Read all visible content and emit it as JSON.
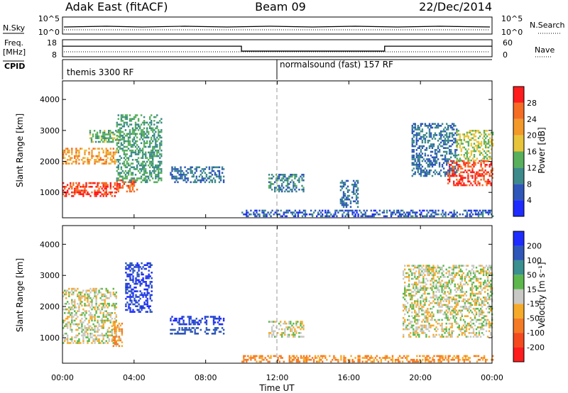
{
  "header": {
    "left_title": "Adak East (fitACF)",
    "center_title": "Beam 09",
    "right_title": "22/Dec/2014"
  },
  "top_panels": {
    "nsky_label": "N.Sky",
    "nsky_ticks": [
      "10^5",
      "10^0"
    ],
    "nsearch_label": "N.Search",
    "nsearch_ticks": [
      "10^5",
      "10^0"
    ],
    "freq_label_line1": "Freq.",
    "freq_label_line2": "[MHz]",
    "freq_ticks": [
      "18",
      "8"
    ],
    "nave_label": "Nave",
    "nave_ticks": [
      "60",
      "0"
    ],
    "cpid_label": "CPID",
    "cpid_modes": [
      "themis 3300 RF",
      "normalsound (fast) 157 RF"
    ],
    "freq_steps": [
      {
        "start_h": 0,
        "end_h": 10.0,
        "mhz": 14.2
      },
      {
        "start_h": 10.0,
        "end_h": 18.0,
        "mhz": 11.3
      },
      {
        "start_h": 18.0,
        "end_h": 24,
        "mhz": 14.2
      }
    ]
  },
  "x_axis": {
    "label": "Time UT",
    "ticks": [
      "00:00",
      "04:00",
      "08:00",
      "12:00",
      "16:00",
      "20:00",
      "00:00"
    ],
    "range_hours": [
      0,
      24
    ],
    "mode_change_hour": 12
  },
  "chart_data": [
    {
      "type": "heatmap",
      "name": "power",
      "ylabel": "Slant Range [km]",
      "yticks": [
        1000,
        2000,
        3000,
        4000
      ],
      "ylim": [
        180,
        4600
      ],
      "colorbar_label": "Power [dB]",
      "colorbar_ticks": [
        4,
        8,
        12,
        16,
        20,
        24,
        28
      ],
      "colorbar_colors": [
        "#1e2cff",
        "#2e57b9",
        "#3d8a8a",
        "#58b05c",
        "#e8c43a",
        "#f2992a",
        "#f56c23",
        "#ff1c1c"
      ],
      "regions": [
        {
          "t": [
            0,
            3.0
          ],
          "r": [
            850,
            1300
          ],
          "level": 28
        },
        {
          "t": [
            3.0,
            4.2
          ],
          "r": [
            1000,
            1400
          ],
          "level": 26
        },
        {
          "t": [
            0,
            3.0
          ],
          "r": [
            1900,
            2400
          ],
          "level": 22
        },
        {
          "t": [
            1.5,
            3.2
          ],
          "r": [
            2600,
            3000
          ],
          "level": 14
        },
        {
          "t": [
            3.0,
            5.5
          ],
          "r": [
            1300,
            3500
          ],
          "level": 12
        },
        {
          "t": [
            6.0,
            9.0
          ],
          "r": [
            1300,
            1800
          ],
          "level": 8
        },
        {
          "t": [
            11.5,
            13.5
          ],
          "r": [
            1000,
            1600
          ],
          "level": 10
        },
        {
          "t": [
            15.5,
            16.5
          ],
          "r": [
            500,
            1400
          ],
          "level": 8
        },
        {
          "t": [
            19.5,
            22.0
          ],
          "r": [
            1500,
            3200
          ],
          "level": 8
        },
        {
          "t": [
            21.5,
            24.0
          ],
          "r": [
            1200,
            2000
          ],
          "level": 28
        },
        {
          "t": [
            22.0,
            24.0
          ],
          "r": [
            2000,
            3000
          ],
          "level": 16
        },
        {
          "t": [
            10.0,
            24.0
          ],
          "r": [
            200,
            400
          ],
          "level": 6
        }
      ]
    },
    {
      "type": "heatmap",
      "name": "velocity",
      "ylabel": "Slant Range [km]",
      "yticks": [
        1000,
        2000,
        3000,
        4000
      ],
      "ylim": [
        180,
        4600
      ],
      "colorbar_label": "Velocity [m s⁻¹]",
      "colorbar_ticks": [
        200,
        100,
        50,
        15,
        -15,
        -50,
        -100,
        -200
      ],
      "colorbar_colors": [
        "#1e2cff",
        "#2e57b9",
        "#3a8f8f",
        "#5cb84c",
        "#c8c8c4",
        "#f5aa2a",
        "#f57a24",
        "#f44a1e",
        "#ff1c1c"
      ],
      "regions": [
        {
          "t": [
            0,
            3.0
          ],
          "r": [
            800,
            2600
          ],
          "level": 0
        },
        {
          "t": [
            2.8,
            3.3
          ],
          "r": [
            700,
            1500
          ],
          "level": -50
        },
        {
          "t": [
            3.5,
            5.0
          ],
          "r": [
            1800,
            3400
          ],
          "level": 200
        },
        {
          "t": [
            6.0,
            9.0
          ],
          "r": [
            1400,
            1700
          ],
          "level": 200
        },
        {
          "t": [
            6.0,
            9.0
          ],
          "r": [
            1100,
            1300
          ],
          "level": 150
        },
        {
          "t": [
            11.5,
            13.5
          ],
          "r": [
            1000,
            1500
          ],
          "level": 0
        },
        {
          "t": [
            19.0,
            24.0
          ],
          "r": [
            1000,
            3300
          ],
          "level": 0
        },
        {
          "t": [
            10.0,
            24.0
          ],
          "r": [
            200,
            400
          ],
          "level": -60
        }
      ]
    }
  ]
}
